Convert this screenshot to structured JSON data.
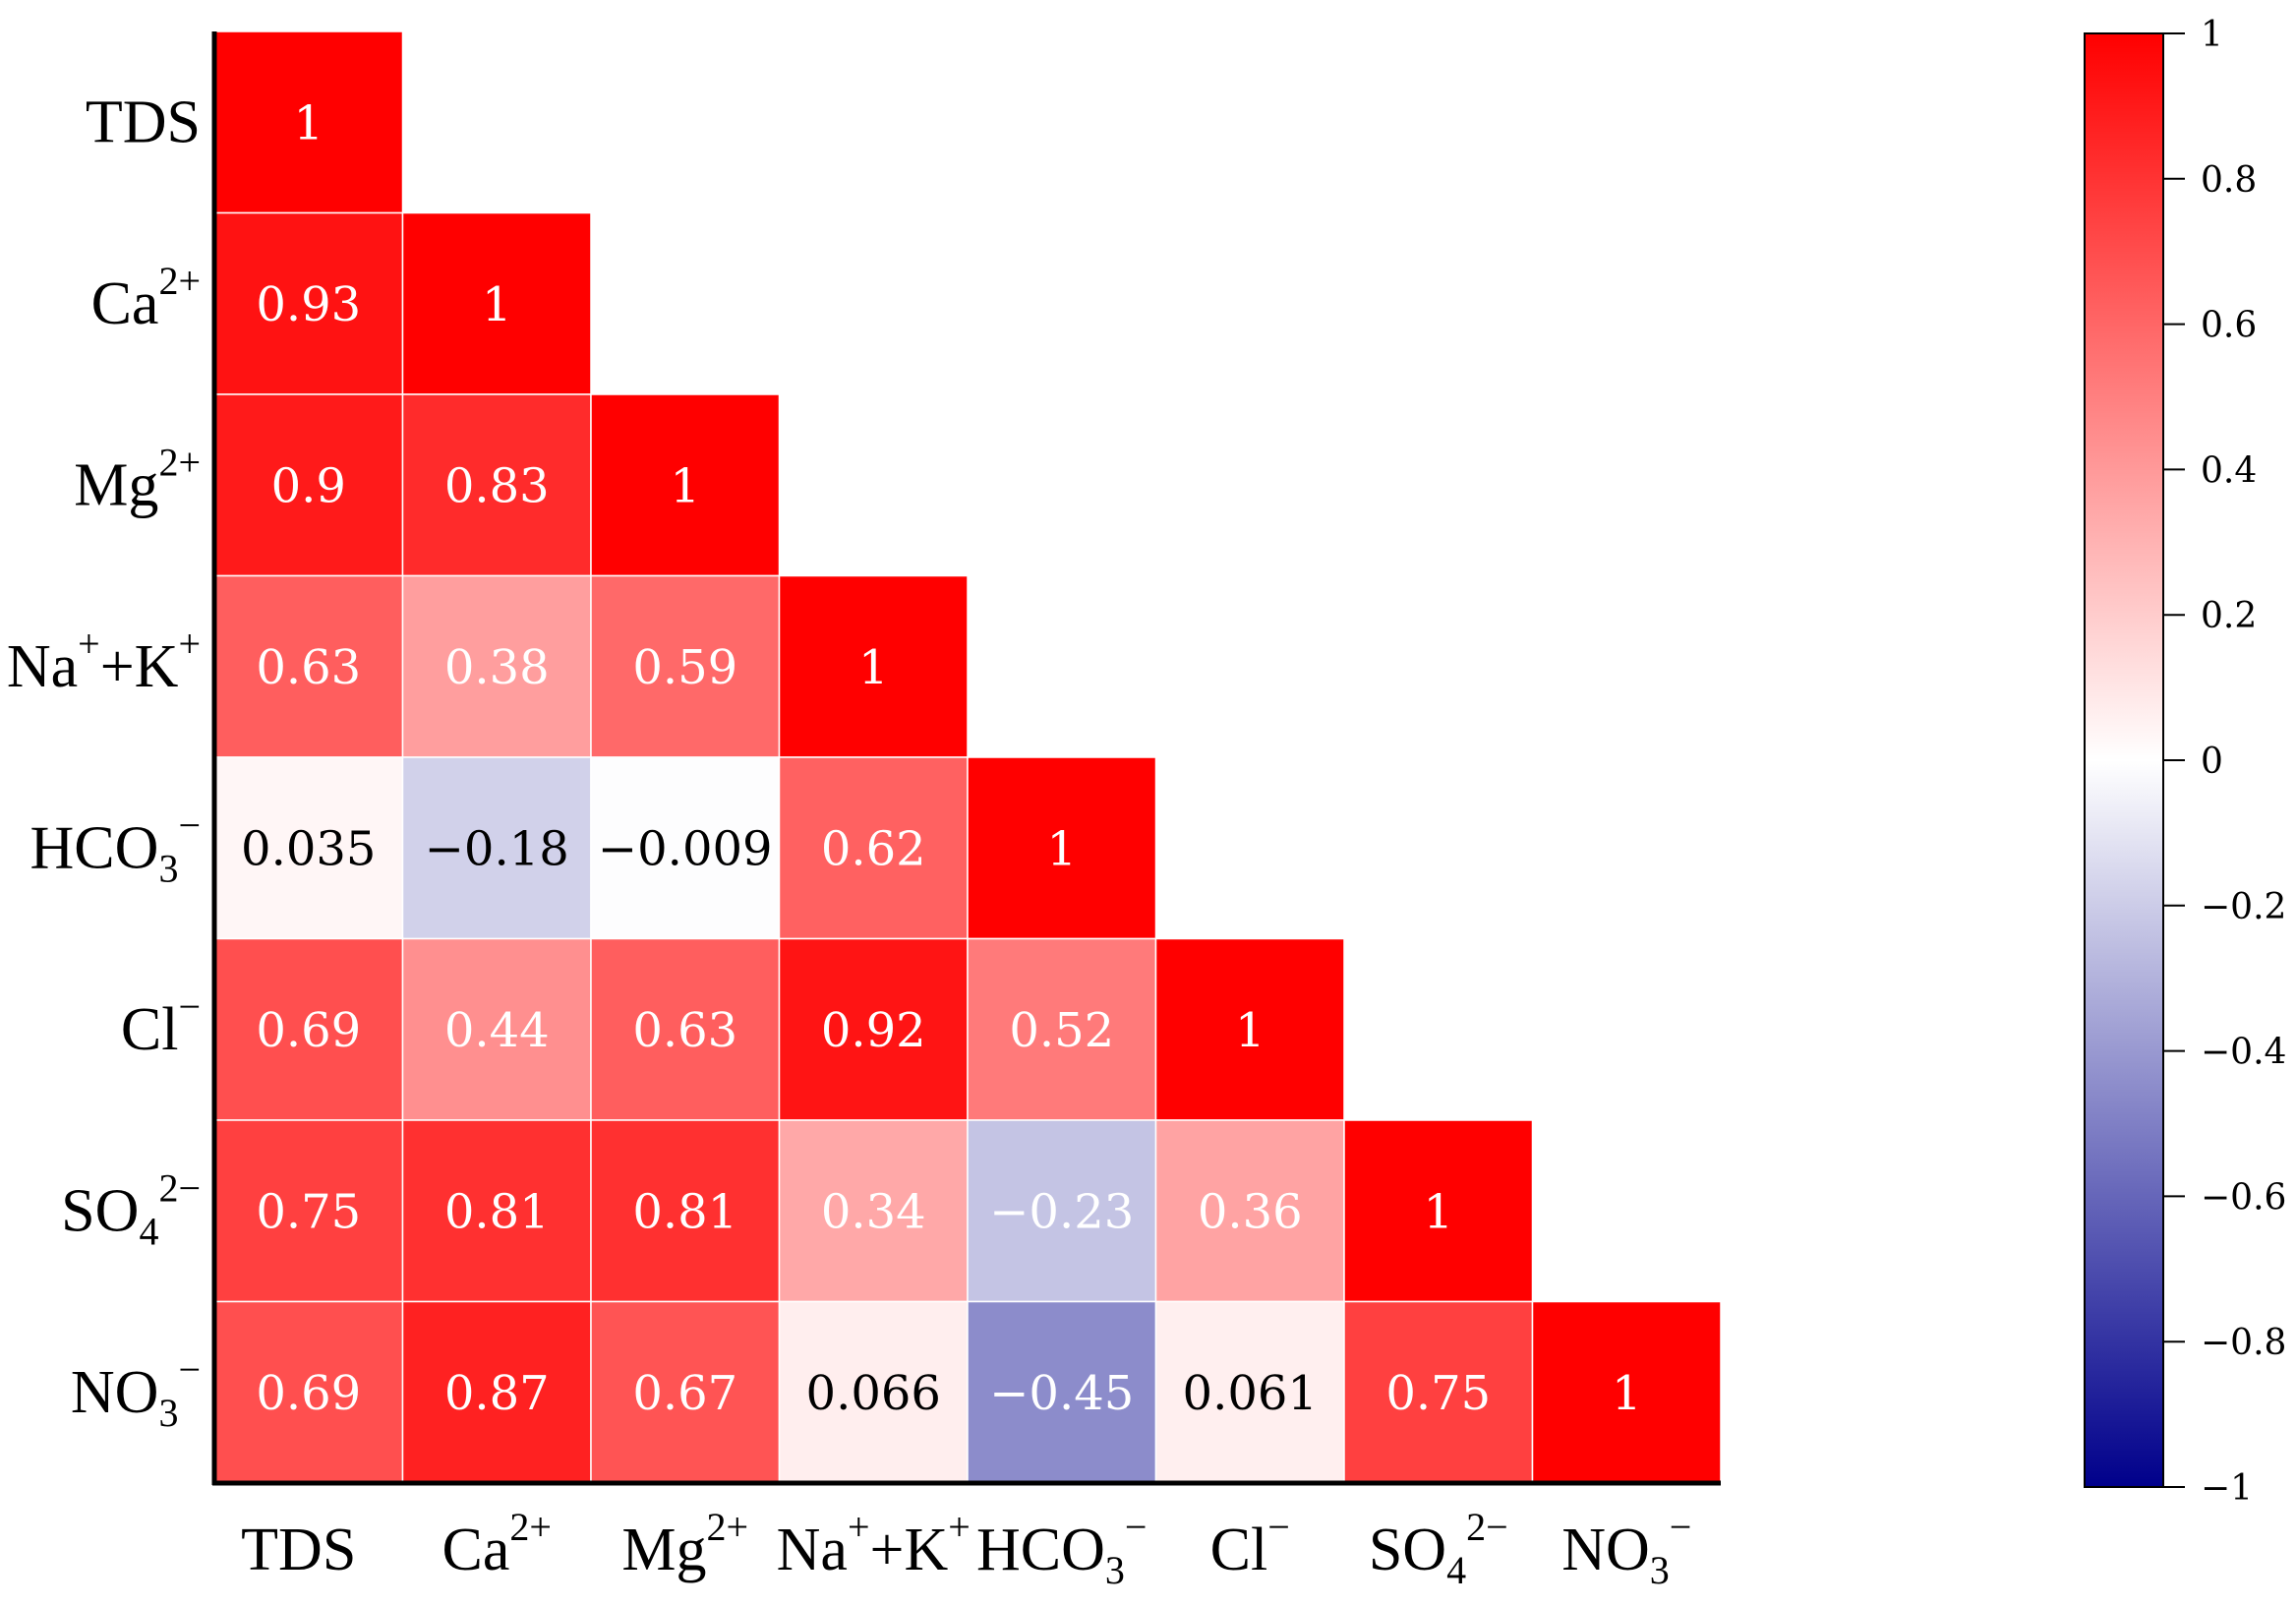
{
  "chart_data": {
    "type": "heatmap",
    "variables": [
      "TDS",
      "Ca2+",
      "Mg2+",
      "Na++K+",
      "HCO3−",
      "Cl−",
      "SO42−",
      "NO3−"
    ],
    "variable_labels": [
      {
        "base": "TDS",
        "sub": "",
        "sup": ""
      },
      {
        "base": "Ca",
        "sub": "",
        "sup": "2+"
      },
      {
        "base": "Mg",
        "sub": "",
        "sup": "2+"
      },
      {
        "base": "Na",
        "sub": "",
        "sup": "+",
        "base2": "+K",
        "sup2": "+"
      },
      {
        "base": "HCO",
        "sub": "3",
        "sup": "−"
      },
      {
        "base": "Cl",
        "sub": "",
        "sup": "−"
      },
      {
        "base": "SO",
        "sub": "4",
        "sup": "2−"
      },
      {
        "base": "NO",
        "sub": "3",
        "sup": "−"
      }
    ],
    "matrix_lower": [
      [
        1
      ],
      [
        0.93,
        1
      ],
      [
        0.9,
        0.83,
        1
      ],
      [
        0.63,
        0.38,
        0.59,
        1
      ],
      [
        0.035,
        -0.18,
        -0.009,
        0.62,
        1
      ],
      [
        0.69,
        0.44,
        0.63,
        0.92,
        0.52,
        1
      ],
      [
        0.75,
        0.81,
        0.81,
        0.34,
        -0.23,
        0.36,
        1
      ],
      [
        0.69,
        0.87,
        0.67,
        0.066,
        -0.45,
        0.061,
        0.75,
        1
      ]
    ],
    "cell_labels": [
      [
        "1"
      ],
      [
        "0.93",
        "1"
      ],
      [
        "0.9",
        "0.83",
        "1"
      ],
      [
        "0.63",
        "0.38",
        "0.59",
        "1"
      ],
      [
        "0.035",
        "−0.18",
        "−0.009",
        "0.62",
        "1"
      ],
      [
        "0.69",
        "0.44",
        "0.63",
        "0.92",
        "0.52",
        "1"
      ],
      [
        "0.75",
        "0.81",
        "0.81",
        "0.34",
        "−0.23",
        "0.36",
        "1"
      ],
      [
        "0.69",
        "0.87",
        "0.67",
        "0.066",
        "−0.45",
        "0.061",
        "0.75",
        "1"
      ]
    ],
    "value_range": [
      -1,
      1
    ],
    "colorbar": {
      "ticks": [
        1,
        0.8,
        0.6,
        0.4,
        0.2,
        0,
        -0.2,
        -0.4,
        -0.6,
        -0.8,
        -1
      ],
      "tick_labels": [
        "1",
        "0.8",
        "0.6",
        "0.4",
        "0.2",
        "0",
        "−0.2",
        "−0.4",
        "−0.6",
        "−0.8",
        "−1"
      ],
      "colors": {
        "high": "#ff0000",
        "mid": "#ffffff",
        "low": "#00008b"
      },
      "placement": "right"
    },
    "title": "",
    "xlabel": "",
    "ylabel": "",
    "grid": false
  }
}
